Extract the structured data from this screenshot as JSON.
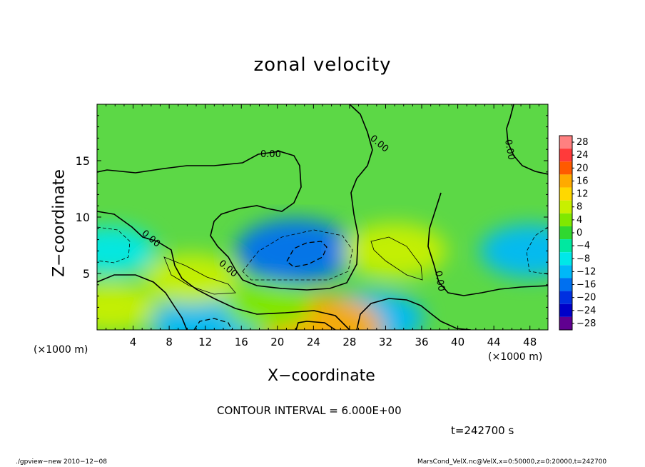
{
  "chart_data": {
    "type": "heatmap",
    "title": "zonal velocity",
    "xlabel": "X−coordinate",
    "ylabel": "Z−coordinate",
    "x_unit": "(×1000 m)",
    "xlim": [
      0,
      50
    ],
    "ylim": [
      0,
      20
    ],
    "x_ticks": [
      4,
      8,
      12,
      16,
      20,
      24,
      28,
      32,
      36,
      40,
      44,
      48
    ],
    "y_ticks": [
      5,
      10,
      15
    ],
    "colorbar": {
      "levels": [
        28,
        24,
        20,
        16,
        12,
        8,
        4,
        0,
        -4,
        -8,
        -12,
        -16,
        -20,
        -24,
        -28
      ],
      "labels": [
        "28",
        "24",
        "20",
        "16",
        "12",
        "8",
        "4",
        "0",
        "−4",
        "−8",
        "−12",
        "−16",
        "−20",
        "−24",
        "−28"
      ],
      "colors": [
        "#ff8080",
        "#ff3a3a",
        "#ff5a00",
        "#ffaa00",
        "#ffd800",
        "#c8f000",
        "#80e800",
        "#30d830",
        "#00e8a0",
        "#00e8e8",
        "#00b8f8",
        "#0070f0",
        "#0030e0",
        "#0000c8",
        "#600090"
      ]
    },
    "features": [
      {
        "x": 22,
        "z": 7,
        "value": -15
      },
      {
        "x": 12,
        "z": 0.5,
        "value": -12
      },
      {
        "x": 30.5,
        "z": 1,
        "value": -11
      },
      {
        "x": 48,
        "z": 7,
        "value": -10
      },
      {
        "x": 1.5,
        "z": 7,
        "value": -8
      },
      {
        "x": 25,
        "z": 0.2,
        "value": 18
      },
      {
        "x": 33,
        "z": 7,
        "value": 11
      },
      {
        "x": 10.5,
        "z": 4.5,
        "value": 9
      },
      {
        "x": 1.5,
        "z": 2,
        "value": 8
      },
      {
        "x": 19,
        "z": 2,
        "value": 7
      }
    ],
    "contour_labels": [
      "0.00",
      "0.00",
      "0.00",
      "0.00",
      "0.00",
      "0.00"
    ]
  },
  "annotations": {
    "contour_interval": "CONTOUR INTERVAL = 6.000E+00",
    "time": "t=242700 s"
  },
  "footer": {
    "left": "./gpview−new   2010−12−08",
    "right": "MarsCond_VelX.nc@VelX,x=0:50000,z=0:20000,t=242700"
  }
}
